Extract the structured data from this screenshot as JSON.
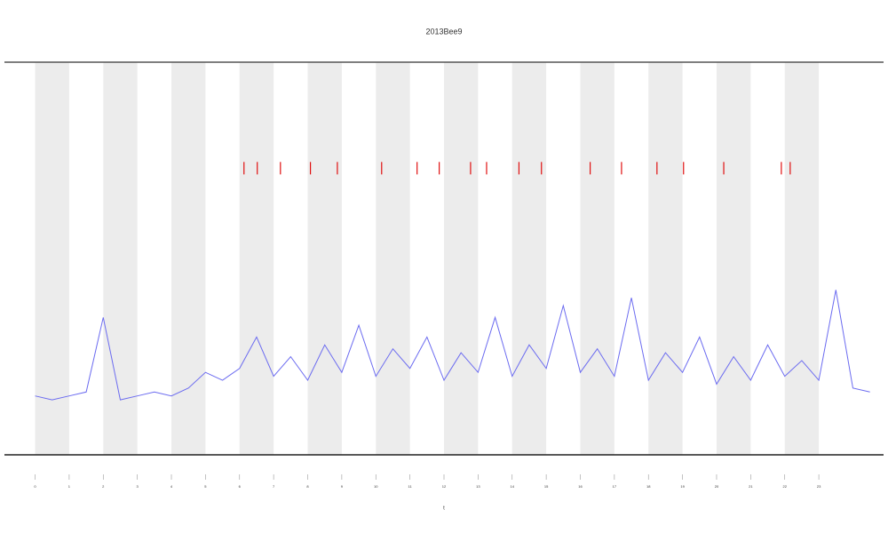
{
  "chart_data": {
    "type": "line",
    "title": "2013Bee9",
    "x_label": "t",
    "x": [
      0,
      0.5,
      1,
      1.5,
      2,
      2.5,
      3,
      3.5,
      4,
      4.5,
      5,
      5.5,
      6,
      6.5,
      7,
      7.5,
      8,
      8.5,
      9,
      9.5,
      10,
      10.5,
      11,
      11.5,
      12,
      12.5,
      13,
      13.5,
      14,
      14.5,
      15,
      15.5,
      16,
      16.5,
      17,
      17.5,
      18,
      18.5,
      19,
      19.5,
      20,
      20.5,
      21,
      21.5,
      22,
      22.5,
      23,
      23.5,
      24,
      24.5
    ],
    "values": [
      15,
      14,
      15,
      16,
      35,
      14,
      15,
      16,
      15,
      17,
      21,
      19,
      22,
      30,
      20,
      25,
      19,
      28,
      21,
      33,
      20,
      27,
      22,
      30,
      19,
      26,
      21,
      35,
      20,
      28,
      22,
      38,
      21,
      27,
      20,
      40,
      19,
      26,
      21,
      30,
      18,
      25,
      19,
      28,
      20,
      24,
      19,
      42,
      17,
      16
    ],
    "color": "#6b6bf0",
    "shaded_ranges": [
      [
        0,
        1
      ],
      [
        2,
        3
      ],
      [
        4,
        5
      ],
      [
        6,
        7
      ],
      [
        8,
        9
      ],
      [
        10,
        11
      ],
      [
        12,
        13
      ],
      [
        14,
        15
      ],
      [
        16,
        17
      ],
      [
        18,
        19
      ],
      [
        20,
        21
      ],
      [
        22,
        23
      ]
    ],
    "shade_color": "#ececec",
    "events": {
      "x": [
        6.13,
        6.52,
        7.2,
        8.08,
        8.87,
        10.17,
        11.21,
        11.86,
        12.78,
        13.25,
        14.2,
        14.86,
        16.29,
        17.21,
        18.25,
        19.03,
        20.21,
        21.9,
        22.16
      ],
      "y": 73,
      "color": "#e01010"
    },
    "xlim": [
      -0.9,
      24.9
    ],
    "xticks": [
      0,
      1,
      2,
      3,
      4,
      5,
      6,
      7,
      8,
      9,
      10,
      11,
      12,
      13,
      14,
      15,
      16,
      17,
      18,
      19,
      20,
      21,
      22,
      23
    ],
    "ylim": [
      0,
      100
    ]
  }
}
